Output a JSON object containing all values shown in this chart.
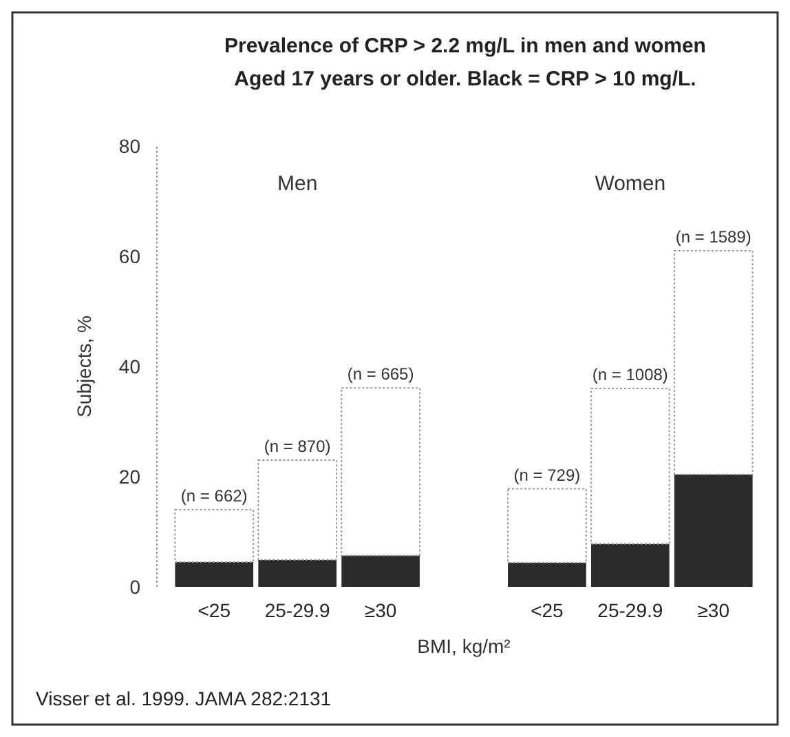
{
  "chart_data": {
    "type": "bar",
    "title": "Prevalence of CRP > 2.2 mg/L in men and women",
    "subtitle": "Aged 17 years or older.  Black = CRP > 10 mg/L.",
    "xlabel": "BMI, kg/m²",
    "ylabel": "Subjects, %",
    "categories": [
      "<25",
      "25-29.9",
      "≥30",
      null,
      "<25",
      "25-29.9",
      "≥30"
    ],
    "stacked": true,
    "series": [
      {
        "color": "#2b2b2b",
        "values": [
          4.5,
          4.9,
          5.7,
          null,
          4.4,
          7.8,
          20.4
        ]
      },
      {
        "color": "#ffffff",
        "values": [
          9.5,
          18.1,
          30.4,
          null,
          13.4,
          28.2,
          40.6
        ]
      }
    ],
    "ylim": [
      0,
      80
    ],
    "yticks": [
      0,
      20,
      40,
      60,
      80
    ],
    "annotations": [
      "Men",
      "Women",
      "(n = 662)",
      "(n = 870)",
      "(n = 665)",
      "(n = 729)",
      "(n = 1008)",
      "(n = 1589)",
      "Visser et al. 1999. JAMA 282:2131"
    ]
  }
}
